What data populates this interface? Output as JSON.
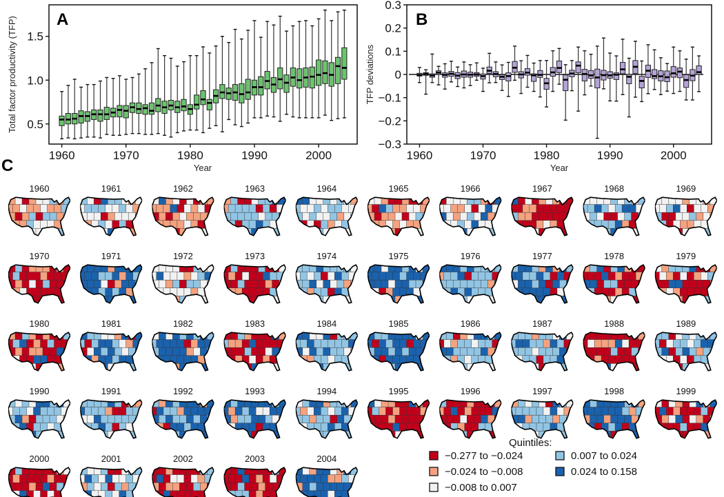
{
  "palette": {
    "q1": "#c2001b",
    "q2": "#f4a27f",
    "q3": "#f2f2f2",
    "q4": "#92c5e4",
    "q5": "#1a62ad",
    "boxA": "#6cc36f",
    "boxB": "#b4a3d6",
    "ink": "#111111"
  },
  "chart_data": [
    {
      "id": "A",
      "type": "boxplot",
      "panel_label": "A",
      "title": "",
      "xlabel": "Year",
      "ylabel": "Total factor productivity (TFP)",
      "xlim": [
        1958,
        2006
      ],
      "ylim": [
        0.27,
        1.86
      ],
      "xticks": [
        1960,
        1970,
        1980,
        1990,
        2000
      ],
      "xtick_labels": [
        "1960",
        "1970",
        "1980",
        "1990",
        "2000"
      ],
      "yticks": [
        0.5,
        1.0,
        1.5
      ],
      "ytick_labels": [
        "0.5",
        "1.0",
        "1.5"
      ],
      "grid": false,
      "zero_line": false,
      "fields": [
        "year",
        "min",
        "q1",
        "median",
        "q3",
        "max"
      ],
      "boxes": [
        [
          1960,
          0.33,
          0.48,
          0.55,
          0.59,
          0.87
        ],
        [
          1961,
          0.34,
          0.5,
          0.55,
          0.62,
          0.94
        ],
        [
          1962,
          0.33,
          0.5,
          0.56,
          0.62,
          1.01
        ],
        [
          1963,
          0.34,
          0.51,
          0.59,
          0.65,
          0.92
        ],
        [
          1964,
          0.35,
          0.53,
          0.59,
          0.64,
          0.95
        ],
        [
          1965,
          0.35,
          0.55,
          0.61,
          0.66,
          0.95
        ],
        [
          1966,
          0.34,
          0.53,
          0.61,
          0.66,
          0.99
        ],
        [
          1967,
          0.38,
          0.55,
          0.61,
          0.69,
          1.03
        ],
        [
          1968,
          0.37,
          0.58,
          0.63,
          0.68,
          1.02
        ],
        [
          1969,
          0.37,
          0.58,
          0.66,
          0.71,
          1.05
        ],
        [
          1970,
          0.38,
          0.57,
          0.65,
          0.71,
          1.01
        ],
        [
          1971,
          0.39,
          0.63,
          0.69,
          0.74,
          1.03
        ],
        [
          1972,
          0.39,
          0.62,
          0.67,
          0.74,
          1.07
        ],
        [
          1973,
          0.38,
          0.61,
          0.68,
          0.72,
          1.13
        ],
        [
          1974,
          0.38,
          0.61,
          0.65,
          0.74,
          1.2
        ],
        [
          1975,
          0.39,
          0.64,
          0.71,
          0.79,
          1.36
        ],
        [
          1976,
          0.37,
          0.62,
          0.69,
          0.76,
          1.28
        ],
        [
          1977,
          0.35,
          0.66,
          0.71,
          0.77,
          1.25
        ],
        [
          1978,
          0.4,
          0.63,
          0.69,
          0.76,
          1.16
        ],
        [
          1979,
          0.42,
          0.65,
          0.7,
          0.78,
          1.21
        ],
        [
          1980,
          0.43,
          0.61,
          0.67,
          0.72,
          1.28
        ],
        [
          1981,
          0.43,
          0.67,
          0.72,
          0.83,
          1.28
        ],
        [
          1982,
          0.4,
          0.72,
          0.78,
          0.88,
          1.38
        ],
        [
          1983,
          0.45,
          0.66,
          0.74,
          0.78,
          1.31
        ],
        [
          1984,
          0.48,
          0.74,
          0.82,
          0.89,
          1.39
        ],
        [
          1985,
          0.41,
          0.79,
          0.86,
          0.95,
          1.5
        ],
        [
          1986,
          0.55,
          0.78,
          0.85,
          0.91,
          1.43
        ],
        [
          1987,
          0.49,
          0.77,
          0.86,
          0.95,
          1.58
        ],
        [
          1988,
          0.47,
          0.74,
          0.84,
          0.96,
          1.47
        ],
        [
          1989,
          0.51,
          0.78,
          0.86,
          1.01,
          1.57
        ],
        [
          1990,
          0.57,
          0.83,
          0.92,
          1.0,
          1.68
        ],
        [
          1991,
          0.57,
          0.83,
          0.92,
          1.04,
          1.49
        ],
        [
          1992,
          0.59,
          0.9,
          0.99,
          1.1,
          1.67
        ],
        [
          1993,
          0.58,
          0.86,
          0.95,
          1.03,
          1.63
        ],
        [
          1994,
          0.53,
          0.9,
          1.01,
          1.14,
          1.73
        ],
        [
          1995,
          0.61,
          0.86,
          0.97,
          1.06,
          1.56
        ],
        [
          1996,
          0.58,
          0.93,
          1.03,
          1.14,
          1.62
        ],
        [
          1997,
          0.57,
          0.91,
          1.0,
          1.13,
          1.67
        ],
        [
          1998,
          0.57,
          0.92,
          1.03,
          1.14,
          1.68
        ],
        [
          1999,
          0.57,
          0.91,
          1.04,
          1.15,
          1.62
        ],
        [
          2000,
          0.57,
          0.94,
          1.06,
          1.23,
          1.7
        ],
        [
          2001,
          0.6,
          0.96,
          1.08,
          1.22,
          1.8
        ],
        [
          2002,
          0.54,
          0.93,
          1.06,
          1.2,
          1.68
        ],
        [
          2003,
          0.56,
          0.96,
          1.16,
          1.26,
          1.78
        ],
        [
          2004,
          0.57,
          1.01,
          1.14,
          1.37,
          1.8
        ]
      ]
    },
    {
      "id": "B",
      "type": "boxplot",
      "panel_label": "B",
      "title": "",
      "xlabel": "Year",
      "ylabel": "TFP deviations",
      "xlim": [
        1958,
        2006
      ],
      "ylim": [
        -0.3,
        0.3
      ],
      "xticks": [
        1960,
        1970,
        1980,
        1990,
        2000
      ],
      "xtick_labels": [
        "1960",
        "1970",
        "1980",
        "1990",
        "2000"
      ],
      "yticks": [
        -0.3,
        -0.2,
        -0.1,
        0,
        0.1,
        0.2,
        0.3
      ],
      "ytick_labels": [
        "−0.3",
        "−0.2",
        "−0.1",
        "0",
        "0.1",
        "0.2",
        "0.3"
      ],
      "grid": false,
      "zero_line": true,
      "fields": [
        "year",
        "min",
        "q1",
        "median",
        "q3",
        "max"
      ],
      "boxes": [
        [
          1960,
          -0.035,
          -0.007,
          -0.002,
          0.005,
          0.03
        ],
        [
          1961,
          -0.085,
          -0.004,
          0.002,
          0.008,
          0.02
        ],
        [
          1962,
          -0.035,
          -0.012,
          -0.004,
          0.003,
          0.088
        ],
        [
          1963,
          -0.045,
          0.0,
          0.008,
          0.016,
          0.035
        ],
        [
          1964,
          -0.063,
          -0.012,
          -0.002,
          0.007,
          0.046
        ],
        [
          1965,
          -0.032,
          -0.008,
          0.003,
          0.013,
          0.057
        ],
        [
          1966,
          -0.052,
          -0.018,
          -0.005,
          0.008,
          0.032
        ],
        [
          1967,
          -0.058,
          -0.012,
          0.0,
          0.015,
          0.054
        ],
        [
          1968,
          -0.048,
          -0.012,
          -0.001,
          0.01,
          0.042
        ],
        [
          1969,
          -0.025,
          -0.008,
          0.0,
          0.008,
          0.05
        ],
        [
          1970,
          -0.073,
          -0.02,
          -0.007,
          0.002,
          0.027
        ],
        [
          1971,
          -0.036,
          0.004,
          0.016,
          0.032,
          0.091
        ],
        [
          1972,
          -0.035,
          -0.01,
          0.002,
          0.012,
          0.054
        ],
        [
          1973,
          -0.069,
          -0.022,
          -0.01,
          -0.001,
          0.041
        ],
        [
          1974,
          -0.095,
          -0.028,
          -0.007,
          0.007,
          0.052
        ],
        [
          1975,
          -0.025,
          0.009,
          0.029,
          0.056,
          0.122
        ],
        [
          1976,
          -0.082,
          -0.015,
          0.0,
          0.012,
          0.059
        ],
        [
          1977,
          -0.055,
          -0.003,
          0.008,
          0.025,
          0.082
        ],
        [
          1978,
          -0.073,
          -0.03,
          -0.004,
          0.003,
          0.049
        ],
        [
          1979,
          -0.097,
          -0.013,
          -0.002,
          0.017,
          0.06
        ],
        [
          1980,
          -0.14,
          -0.064,
          -0.038,
          -0.017,
          0.06
        ],
        [
          1981,
          -0.073,
          -0.008,
          0.009,
          0.03,
          0.102
        ],
        [
          1982,
          -0.042,
          0.008,
          0.028,
          0.058,
          0.112
        ],
        [
          1983,
          -0.197,
          -0.07,
          -0.023,
          -0.002,
          0.042
        ],
        [
          1984,
          -0.07,
          -0.01,
          0.004,
          0.018,
          0.06
        ],
        [
          1985,
          -0.158,
          0.007,
          0.038,
          0.054,
          0.118
        ],
        [
          1986,
          -0.088,
          -0.028,
          0.002,
          0.022,
          0.102
        ],
        [
          1987,
          -0.05,
          -0.017,
          -0.004,
          0.017,
          0.087
        ],
        [
          1988,
          -0.275,
          -0.058,
          -0.013,
          0.023,
          0.122
        ],
        [
          1989,
          -0.062,
          -0.024,
          -0.003,
          0.018,
          0.157
        ],
        [
          1990,
          -0.114,
          -0.016,
          -0.004,
          0.012,
          0.092
        ],
        [
          1991,
          -0.115,
          -0.022,
          -0.001,
          0.007,
          0.08
        ],
        [
          1992,
          -0.087,
          0.003,
          0.022,
          0.052,
          0.152
        ],
        [
          1993,
          -0.183,
          -0.04,
          -0.01,
          0.0,
          0.07
        ],
        [
          1994,
          -0.098,
          0.004,
          0.033,
          0.06,
          0.143
        ],
        [
          1995,
          -0.117,
          -0.058,
          -0.028,
          -0.008,
          0.058
        ],
        [
          1996,
          -0.083,
          -0.013,
          0.016,
          0.04,
          0.128
        ],
        [
          1997,
          -0.065,
          -0.018,
          -0.007,
          0.021,
          0.106
        ],
        [
          1998,
          -0.087,
          -0.028,
          -0.008,
          0.016,
          0.072
        ],
        [
          1999,
          -0.072,
          -0.031,
          -0.012,
          0.015,
          0.047
        ],
        [
          2000,
          -0.082,
          -0.012,
          0.005,
          0.034,
          0.118
        ],
        [
          2001,
          -0.073,
          -0.014,
          0.012,
          0.028,
          0.102
        ],
        [
          2002,
          -0.11,
          -0.056,
          -0.024,
          -0.001,
          0.066
        ],
        [
          2003,
          -0.11,
          -0.027,
          -0.005,
          0.021,
          0.118
        ],
        [
          2004,
          -0.074,
          0.0,
          0.01,
          0.037,
          0.08
        ]
      ]
    },
    {
      "id": "C",
      "type": "choropleth-small-multiples",
      "panel_label": "C",
      "title": "",
      "description": "State-level TFP deviations by year, colored by quintile",
      "years": [
        1960,
        1961,
        1962,
        1963,
        1964,
        1965,
        1966,
        1967,
        1968,
        1969,
        1970,
        1971,
        1972,
        1973,
        1974,
        1975,
        1976,
        1977,
        1978,
        1979,
        1980,
        1981,
        1982,
        1983,
        1984,
        1985,
        1986,
        1987,
        1988,
        1989,
        1990,
        1991,
        1992,
        1993,
        1994,
        1995,
        1996,
        1997,
        1998,
        1999,
        2000,
        2001,
        2002,
        2003,
        2004
      ],
      "year_labels": [
        "1960",
        "1961",
        "1962",
        "1963",
        "1964",
        "1965",
        "1966",
        "1967",
        "1968",
        "1969",
        "1970",
        "1971",
        "1972",
        "1973",
        "1974",
        "1975",
        "1976",
        "1977",
        "1978",
        "1979",
        "1980",
        "1981",
        "1982",
        "1983",
        "1984",
        "1985",
        "1986",
        "1987",
        "1988",
        "1989",
        "1990",
        "1991",
        "1992",
        "1993",
        "1994",
        "1995",
        "1996",
        "1997",
        "1998",
        "1999",
        "2000",
        "2001",
        "2002",
        "2003",
        "2004"
      ],
      "dominant_quintile_by_year": [
        3,
        3,
        2,
        4,
        3,
        2,
        3,
        1,
        4,
        3,
        1,
        5,
        3,
        1,
        4,
        5,
        4,
        5,
        1,
        1,
        1,
        5,
        5,
        1,
        4,
        5,
        4,
        4,
        1,
        4,
        4,
        4,
        5,
        5,
        4,
        1,
        1,
        4,
        5,
        1,
        1,
        4,
        1,
        1,
        5
      ],
      "legend": {
        "title": "Quintiles:",
        "entries": [
          {
            "key": "q1",
            "label": "−0.277 to −0.024"
          },
          {
            "key": "q2",
            "label": "−0.024 to −0.008"
          },
          {
            "key": "q3",
            "label": "−0.008 to 0.007"
          },
          {
            "key": "q4",
            "label": "0.007 to 0.024"
          },
          {
            "key": "q5",
            "label": "0.024 to 0.158"
          }
        ]
      }
    }
  ]
}
